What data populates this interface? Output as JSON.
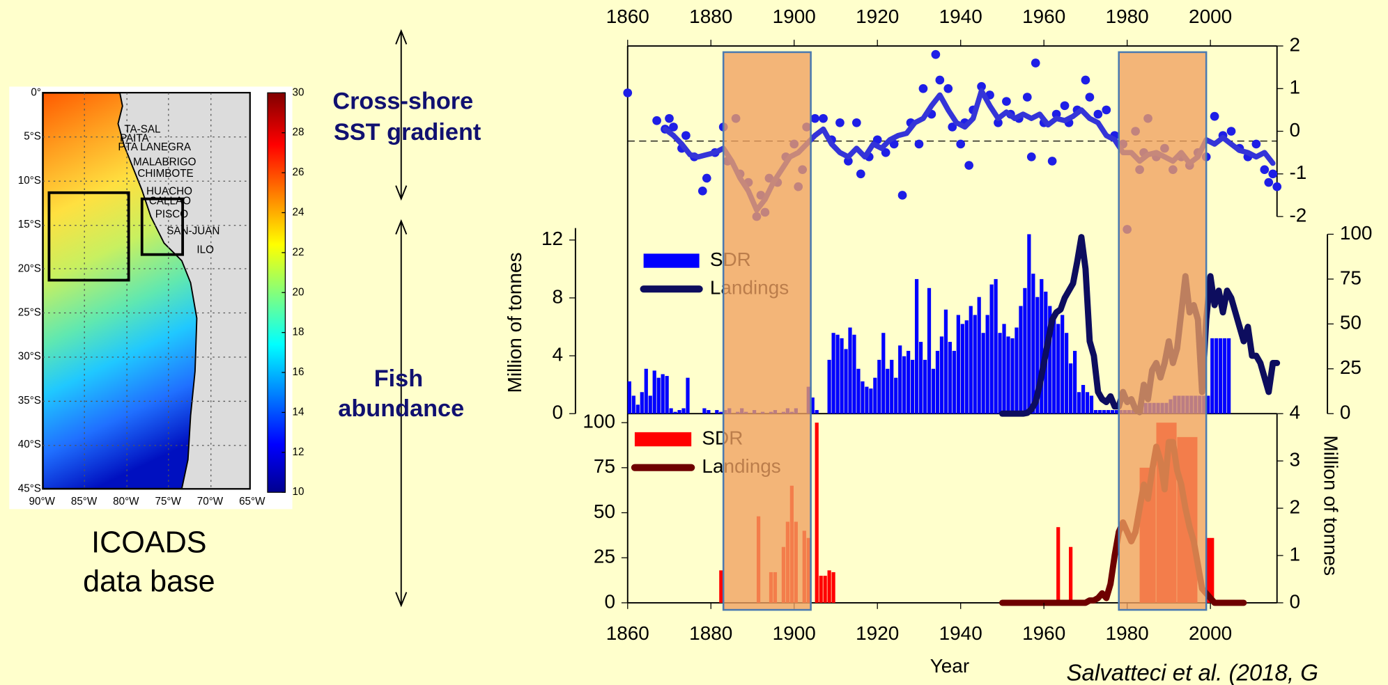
{
  "map": {
    "lat_labels": [
      "0°",
      "5°S",
      "10°S",
      "15°S",
      "20°S",
      "25°S",
      "30°S",
      "35°S",
      "40°S",
      "45°S"
    ],
    "lon_labels": [
      "90°W",
      "85°W",
      "80°W",
      "75°W",
      "70°W",
      "65°W"
    ],
    "places": [
      "TA-SAL",
      "PAITA",
      "PTA LANEGRA",
      "MALABRIGO",
      "CHIMBOTE",
      "HUACHO",
      "CALLAO",
      "PISCO",
      "SAN-JUAN",
      "ILO"
    ],
    "colorbar_ticks": [
      10,
      12,
      14,
      16,
      18,
      20,
      22,
      24,
      26,
      28,
      30
    ],
    "caption": [
      "ICOADS",
      "data base"
    ]
  },
  "labels": {
    "sst_gradient": [
      "Cross-shore",
      "SST gradient"
    ],
    "fish": [
      "Fish",
      "abundance"
    ],
    "citation": "Salvatteci et al. (2018, G"
  },
  "chart_data": [
    {
      "type": "scatter",
      "xlim": [
        1860,
        2016
      ],
      "xticks": [
        1860,
        1880,
        1900,
        1920,
        1940,
        1960,
        1980,
        2000
      ],
      "ylim": [
        -2,
        2
      ],
      "yticks": [
        -2,
        -1,
        0,
        1,
        2
      ],
      "reference_line": -0.23,
      "highlight_spans": [
        [
          1883,
          1904
        ],
        [
          1978,
          1999
        ]
      ],
      "series": [
        {
          "type": "scatter",
          "color": "#1e1ee6",
          "x": [
            1860,
            1867,
            1869,
            1870,
            1871,
            1873,
            1874,
            1876,
            1878,
            1879,
            1881,
            1883,
            1884,
            1886,
            1887,
            1889,
            1891,
            1892,
            1893,
            1894,
            1896,
            1898,
            1900,
            1901,
            1902,
            1903,
            1905,
            1907,
            1909,
            1911,
            1913,
            1915,
            1916,
            1918,
            1920,
            1922,
            1924,
            1926,
            1928,
            1930,
            1931,
            1933,
            1934,
            1935,
            1937,
            1938,
            1940,
            1941,
            1942,
            1943,
            1945,
            1947,
            1949,
            1951,
            1952,
            1954,
            1956,
            1957,
            1958,
            1960,
            1962,
            1963,
            1965,
            1966,
            1968,
            1970,
            1971,
            1973,
            1975,
            1977,
            1979,
            1980,
            1982,
            1983,
            1984,
            1985,
            1987,
            1989,
            1991,
            1993,
            1995,
            1997,
            1999,
            2001,
            2003,
            2005,
            2007,
            2009,
            2011,
            2013,
            2014,
            2015,
            2016
          ],
          "values": [
            0.9,
            0.25,
            0.05,
            0.3,
            0.1,
            -0.4,
            -0.1,
            -0.6,
            -1.4,
            -1.1,
            -0.5,
            0.1,
            -0.7,
            0.3,
            -1.0,
            -1.2,
            -2.0,
            -1.5,
            -1.9,
            -1.1,
            -1.2,
            -0.6,
            -0.3,
            -1.3,
            -0.9,
            0.1,
            0.3,
            0.3,
            -0.2,
            0.2,
            -0.7,
            0.2,
            -1.0,
            -0.6,
            -0.2,
            -0.5,
            -0.3,
            -1.5,
            0.2,
            -0.3,
            1.0,
            0.4,
            1.8,
            1.2,
            1.0,
            0.1,
            -0.3,
            0.2,
            -0.8,
            0.5,
            1.05,
            0.85,
            0.2,
            0.7,
            0.4,
            0.3,
            0.8,
            -0.6,
            1.6,
            0.2,
            -0.7,
            0.4,
            0.6,
            0.2,
            0.5,
            1.2,
            0.8,
            0.4,
            0.5,
            -0.1,
            -0.3,
            -2.3,
            0,
            -0.9,
            -0.5,
            0.3,
            -0.6,
            -0.4,
            -0.9,
            -0.6,
            -0.8,
            -0.5,
            -0.6,
            0.35,
            -0.1,
            0,
            -0.4,
            -0.6,
            -0.3,
            -0.9,
            -1.2,
            -1.0,
            -1.3
          ]
        },
        {
          "type": "line",
          "color": "#3434d8",
          "x": [
            1869,
            1871,
            1873,
            1875,
            1877,
            1879,
            1881,
            1883,
            1885,
            1887,
            1889,
            1891,
            1893,
            1895,
            1897,
            1899,
            1901,
            1903,
            1905,
            1907,
            1909,
            1911,
            1913,
            1915,
            1917,
            1919,
            1921,
            1923,
            1925,
            1927,
            1929,
            1931,
            1933,
            1935,
            1937,
            1939,
            1941,
            1943,
            1945,
            1947,
            1949,
            1951,
            1953,
            1955,
            1957,
            1959,
            1961,
            1963,
            1965,
            1967,
            1969,
            1971,
            1973,
            1975,
            1977,
            1979,
            1981,
            1983,
            1985,
            1987,
            1989,
            1991,
            1993,
            1995,
            1997,
            1999,
            2001,
            2003,
            2005,
            2007,
            2009,
            2011,
            2013,
            2015
          ],
          "values": [
            0.05,
            -0.1,
            -0.3,
            -0.55,
            -0.6,
            -0.55,
            -0.5,
            -0.4,
            -0.7,
            -1.1,
            -1.4,
            -1.85,
            -1.6,
            -1.2,
            -0.9,
            -0.6,
            -0.5,
            -0.3,
            -0.1,
            0.05,
            -0.3,
            -0.5,
            -0.6,
            -0.4,
            -0.6,
            -0.3,
            -0.4,
            -0.2,
            -0.1,
            -0.05,
            0.2,
            0.3,
            0.6,
            0.85,
            0.5,
            0.2,
            0.1,
            0.3,
            0.95,
            0.6,
            0.3,
            0.45,
            0.3,
            0.4,
            0.3,
            0.4,
            0.15,
            0.3,
            0.25,
            0.35,
            0.5,
            0.3,
            0.2,
            -0.1,
            -0.2,
            -0.5,
            -0.5,
            -0.7,
            -0.55,
            -0.5,
            -0.6,
            -0.7,
            -0.5,
            -0.75,
            -0.6,
            -0.2,
            -0.3,
            -0.15,
            -0.3,
            -0.45,
            -0.5,
            -0.6,
            -0.5,
            -0.75
          ]
        }
      ]
    },
    {
      "type": "bar",
      "xlim": [
        1860,
        2016
      ],
      "ylabel": "Million of tonnes",
      "ylim": [
        0,
        12.4
      ],
      "yticks": [
        0,
        4,
        8,
        12
      ],
      "y2lim": [
        0,
        100
      ],
      "y2ticks": [
        0,
        25,
        50,
        75,
        100
      ],
      "y2tick_color": "#0000ff",
      "series": [
        {
          "name": "SDR",
          "type": "bar",
          "axis": "y2",
          "color": "#0000ff",
          "x": [
            1860,
            1861,
            1862,
            1863,
            1864,
            1865,
            1866,
            1867,
            1868,
            1869,
            1870,
            1871,
            1872,
            1873,
            1874,
            1875,
            1876,
            1877,
            1878,
            1879,
            1880,
            1881,
            1882,
            1883,
            1884,
            1885,
            1886,
            1887,
            1888,
            1889,
            1890,
            1891,
            1892,
            1893,
            1894,
            1895,
            1896,
            1897,
            1898,
            1899,
            1900,
            1901,
            1902,
            1903,
            1904,
            1905,
            1906,
            1907,
            1908,
            1909,
            1910,
            1911,
            1912,
            1913,
            1914,
            1915,
            1916,
            1917,
            1918,
            1919,
            1920,
            1921,
            1922,
            1923,
            1924,
            1925,
            1926,
            1927,
            1928,
            1929,
            1930,
            1931,
            1932,
            1933,
            1934,
            1935,
            1936,
            1937,
            1938,
            1939,
            1940,
            1941,
            1942,
            1943,
            1944,
            1945,
            1946,
            1947,
            1948,
            1949,
            1950,
            1951,
            1952,
            1953,
            1954,
            1955,
            1956,
            1957,
            1958,
            1959,
            1960,
            1961,
            1962,
            1963,
            1964,
            1965,
            1966,
            1967,
            1968,
            1969,
            1970,
            1971,
            1972,
            1973,
            1974,
            1975,
            1976,
            1977,
            1978,
            1979,
            1980,
            1981,
            1982,
            1983,
            1984,
            1985,
            1986,
            1987,
            1988,
            1989,
            1990,
            1991,
            1992,
            1993,
            1994,
            1995,
            1996,
            1997,
            1998,
            1999,
            2000,
            2001,
            2002,
            2003,
            2004
          ],
          "values": [
            18,
            10,
            5,
            12,
            25,
            10,
            24,
            20,
            22,
            21,
            3,
            1,
            2,
            3,
            20,
            0,
            0,
            0,
            3,
            2,
            0,
            2,
            1,
            2,
            3,
            0,
            1,
            3,
            1,
            0,
            2,
            0,
            1,
            0,
            1,
            2,
            0,
            1,
            3,
            1,
            3,
            0,
            0,
            15,
            9,
            2,
            0,
            0,
            30,
            45,
            44,
            42,
            36,
            48,
            44,
            25,
            18,
            15,
            14,
            20,
            30,
            45,
            25,
            30,
            20,
            38,
            32,
            35,
            30,
            75,
            40,
            30,
            70,
            25,
            35,
            43,
            58,
            40,
            35,
            55,
            50,
            52,
            60,
            55,
            65,
            45,
            55,
            72,
            75,
            45,
            50,
            43,
            42,
            48,
            60,
            70,
            100,
            78,
            65,
            75,
            68,
            60,
            55,
            50,
            55,
            45,
            28,
            35,
            12,
            16,
            12,
            10,
            2,
            2,
            2,
            2,
            2,
            2,
            2,
            2,
            2,
            2,
            4,
            6,
            6,
            6,
            6,
            6,
            6,
            6,
            8,
            10,
            10,
            10,
            10,
            10,
            10,
            10,
            10,
            10,
            42,
            42,
            42,
            42,
            42
          ]
        },
        {
          "name": "Landings",
          "type": "line",
          "color": "#0d0d5e",
          "x": [
            1950,
            1951,
            1952,
            1953,
            1954,
            1955,
            1956,
            1957,
            1958,
            1959,
            1960,
            1961,
            1962,
            1963,
            1964,
            1965,
            1966,
            1967,
            1968,
            1969,
            1970,
            1971,
            1972,
            1973,
            1974,
            1975,
            1976,
            1977,
            1978,
            1979,
            1980,
            1981,
            1982,
            1983,
            1984,
            1985,
            1986,
            1987,
            1988,
            1989,
            1990,
            1991,
            1992,
            1993,
            1994,
            1995,
            1996,
            1997,
            1998,
            1999,
            2000,
            2001,
            2002,
            2003,
            2004,
            2005,
            2006,
            2007,
            2008,
            2009,
            2010,
            2011,
            2012,
            2013,
            2014,
            2015,
            2016
          ],
          "values": [
            0,
            0,
            0,
            0,
            0,
            0,
            0.05,
            0.3,
            0.8,
            2,
            3.5,
            5,
            6.5,
            7,
            7.2,
            8,
            8.5,
            9,
            10.5,
            12.2,
            10,
            5,
            4,
            1.5,
            1,
            0.8,
            1.2,
            0.5,
            0.5,
            1.5,
            0.8,
            1,
            0.3,
            0.1,
            2,
            1,
            3,
            3.5,
            2.5,
            3.5,
            5,
            3.5,
            4.5,
            7,
            9.5,
            7,
            7.5,
            6.5,
            1.5,
            6.5,
            9.5,
            7.5,
            8.5,
            7,
            8.5,
            8,
            7,
            6,
            5,
            6,
            4,
            4,
            3.5,
            2.5,
            1.5,
            3.5,
            3.5
          ]
        }
      ]
    },
    {
      "type": "bar",
      "xlim": [
        1860,
        2016
      ],
      "xticks": [
        1860,
        1880,
        1900,
        1920,
        1940,
        1960,
        1980,
        2000
      ],
      "xlabel": "Year",
      "ylim": [
        0,
        105
      ],
      "yticks": [
        0,
        25,
        50,
        75,
        100
      ],
      "ytick_color": "#ff0000",
      "y2lim": [
        0,
        4
      ],
      "y2ticks": [
        0,
        1,
        2,
        3,
        4
      ],
      "y2label": "Million of tonnes",
      "series": [
        {
          "name": "SDR",
          "type": "bar",
          "color": "#ff0000",
          "x_start": [
            1882,
            1891,
            1894,
            1895,
            1897,
            1898,
            1899,
            1900,
            1902,
            1903,
            1905,
            1906,
            1907,
            1908,
            1909,
            1963,
            1966,
            1983,
            1987,
            1992,
            1999
          ],
          "x_end": [
            1883,
            1892,
            1895,
            1896,
            1898,
            1899,
            1900,
            1901,
            1903,
            1904,
            1906,
            1907,
            1908,
            1909,
            1910,
            1964,
            1967,
            1987,
            1992,
            1997,
            2001
          ],
          "values": [
            18,
            48,
            17,
            17,
            31,
            45,
            65,
            45,
            40,
            36,
            100,
            15,
            15,
            18,
            17,
            42,
            31,
            75,
            100,
            92,
            36
          ]
        },
        {
          "name": "Landings",
          "type": "line",
          "axis": "y2",
          "color": "#6e0000",
          "x": [
            1950,
            1951,
            1952,
            1953,
            1954,
            1955,
            1956,
            1957,
            1958,
            1959,
            1960,
            1961,
            1962,
            1963,
            1964,
            1965,
            1966,
            1967,
            1968,
            1969,
            1970,
            1971,
            1972,
            1973,
            1974,
            1975,
            1976,
            1977,
            1978,
            1979,
            1980,
            1981,
            1982,
            1983,
            1984,
            1985,
            1986,
            1987,
            1988,
            1989,
            1990,
            1991,
            1992,
            1993,
            1994,
            1995,
            1996,
            1997,
            1998,
            1999,
            2000,
            2001,
            2002,
            2003,
            2004,
            2005,
            2006,
            2007,
            2008
          ],
          "values": [
            0,
            0,
            0,
            0,
            0,
            0,
            0,
            0,
            0,
            0,
            0,
            0,
            0,
            0,
            0,
            0,
            0,
            0,
            0,
            0,
            0,
            0.05,
            0.05,
            0.1,
            0.2,
            0.1,
            0.4,
            1.0,
            1.5,
            1.7,
            1.5,
            1.3,
            1.5,
            2.0,
            2.5,
            2.2,
            2.8,
            3.3,
            3.0,
            2.4,
            3.4,
            3.4,
            2.8,
            2.5,
            2.0,
            1.6,
            1.3,
            0.8,
            0.3,
            0.2,
            0.1,
            0,
            0,
            0,
            0,
            0,
            0,
            0,
            0
          ]
        }
      ]
    }
  ]
}
